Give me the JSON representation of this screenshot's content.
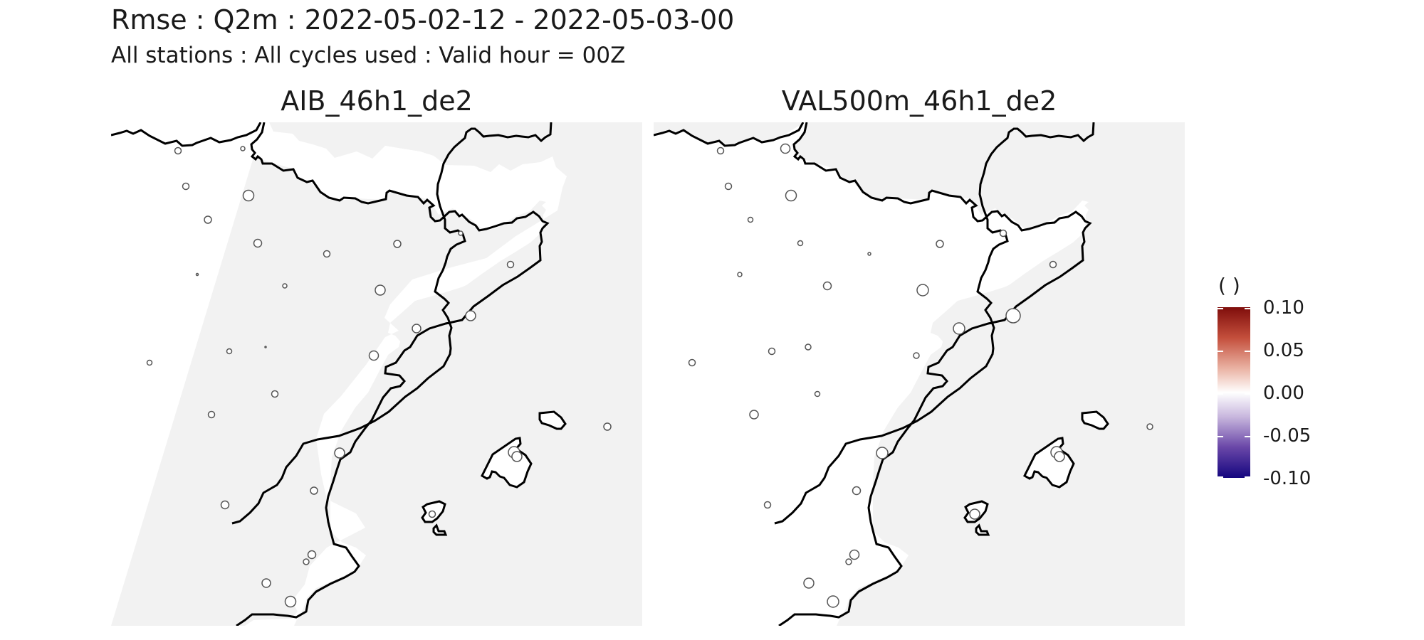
{
  "title": "Rmse : Q2m : 2022-05-02-12 - 2022-05-03-00",
  "subtitle": "All stations : All cycles used : Valid hour = 00Z",
  "panels": [
    {
      "title": "AIB_46h1_de2"
    },
    {
      "title": "VAL500m_46h1_de2"
    }
  ],
  "legend": {
    "title": "( )",
    "labels": [
      "0.10",
      "0.05",
      "0.00",
      "-0.05",
      "-0.10"
    ],
    "gradient": [
      "#7f0d0b",
      "#c44f3c",
      "#eab3a4",
      "#ffffff",
      "#c9b8de",
      "#6a47a8",
      "#14067f"
    ]
  },
  "colors": {
    "sea": "#f2f2f2",
    "land": "#ffffff",
    "coastline": "#000000",
    "station_outline": "#555555",
    "station_fill": "#ffffff"
  }
}
